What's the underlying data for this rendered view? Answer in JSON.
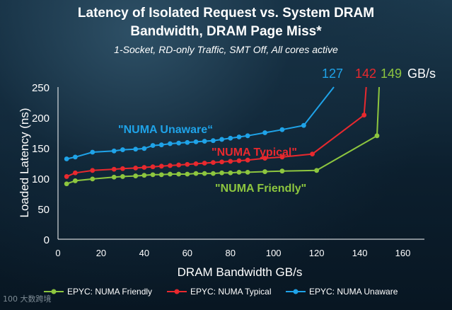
{
  "chart_data": {
    "type": "line",
    "title_line1": "Latency of Isolated Request vs. System DRAM",
    "title_line2": "Bandwidth, DRAM Page Miss*",
    "subtitle": "1-Socket, RD-only Traffic, SMT Off, All cores active",
    "xlabel": "DRAM Bandwidth GB/s",
    "ylabel": "Loaded Latency (ns)",
    "xlim": [
      0,
      170
    ],
    "ylim": [
      0,
      250
    ],
    "xticks": [
      0,
      20,
      40,
      60,
      80,
      100,
      120,
      140,
      160
    ],
    "yticks": [
      0,
      50,
      100,
      150,
      200,
      250
    ],
    "series": [
      {
        "name": "EPYC: NUMA Unaware",
        "color": "#1fa3e8",
        "annotation": "\"NUMA Unaware“",
        "max_bw": "127",
        "x": [
          4,
          8,
          16,
          26,
          30,
          36,
          40,
          44,
          48,
          52,
          56,
          60,
          64,
          68,
          72,
          76,
          80,
          84,
          88,
          96,
          104,
          114,
          128
        ],
        "y": [
          132,
          135,
          143,
          145,
          147,
          148,
          149,
          154,
          155,
          157,
          158,
          159,
          160,
          161,
          162,
          164,
          166,
          168,
          170,
          175,
          180,
          187,
          250
        ]
      },
      {
        "name": "EPYC: NUMA Typical",
        "color": "#e8292e",
        "annotation": "\"NUMA Typical\"",
        "max_bw": "142",
        "x": [
          4,
          8,
          16,
          26,
          30,
          36,
          40,
          44,
          48,
          52,
          56,
          60,
          64,
          68,
          72,
          76,
          80,
          84,
          88,
          96,
          104,
          118,
          142,
          143
        ],
        "y": [
          103,
          109,
          113,
          115,
          116,
          117,
          118,
          119,
          120,
          121,
          122,
          123,
          124,
          125,
          126,
          127,
          128,
          129,
          130,
          133,
          135,
          140,
          204,
          250
        ]
      },
      {
        "name": "EPYC: NUMA Friendly",
        "color": "#8dc63f",
        "annotation": "\"NUMA Friendly\"",
        "max_bw": "149",
        "x": [
          4,
          8,
          16,
          26,
          30,
          36,
          40,
          44,
          48,
          52,
          56,
          60,
          64,
          68,
          72,
          76,
          80,
          84,
          88,
          96,
          104,
          120,
          148,
          149
        ],
        "y": [
          91,
          96,
          99,
          102,
          103,
          104,
          105,
          106,
          106,
          107,
          107,
          107,
          108,
          108,
          108,
          109,
          109,
          110,
          110,
          111,
          112,
          113,
          170,
          250
        ]
      }
    ],
    "legend_position": "bottom",
    "legend_order": [
      2,
      1,
      0
    ],
    "unit_suffix": "GB/s"
  },
  "watermark": "100 大数跨境",
  "colors": {
    "axis": "#ffffff",
    "background": "#0d2233"
  }
}
